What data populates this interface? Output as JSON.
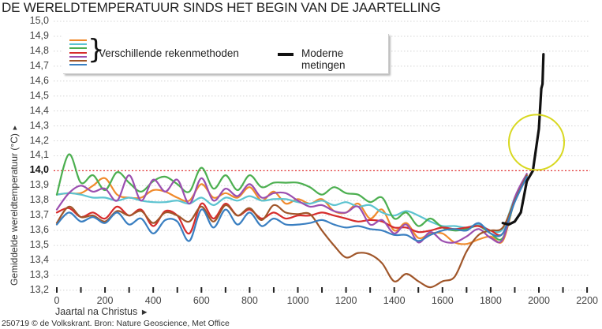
{
  "title": "DE WERELDTEMPERATUUR SINDS HET BEGIN VAN DE JAARTELLING",
  "footer": "250719 © de Volkskrant. Bron: Nature Geoscience, Met Office",
  "legend": {
    "methods_label": "Verschillende rekenmethoden",
    "modern_label": "Moderne metingen",
    "method_colors": [
      "#f08a2c",
      "#5cc3d0",
      "#4caf50",
      "#d62c2c",
      "#9b4fb0",
      "#a0562a",
      "#3a7fc1"
    ]
  },
  "axes": {
    "y_title": "Gemiddelde wereldtemperatuur (°C)",
    "y_arrow": "▲",
    "x_title": "Jaartal na Christus",
    "x_arrow": "►",
    "y_ticks": [
      "15,0",
      "14,9",
      "14,8",
      "14,7",
      "14,6",
      "14,5",
      "14,4",
      "14,3",
      "14,2",
      "14,1",
      "14,0",
      "13,9",
      "13,8",
      "13,7",
      "13,6",
      "13,5",
      "13,4",
      "13,3",
      "13,2"
    ],
    "x_ticks": [
      "0",
      "200",
      "400",
      "600",
      "800",
      "1000",
      "1200",
      "1400",
      "1600",
      "1800",
      "2000",
      "2200"
    ]
  },
  "chart_data": {
    "type": "line",
    "title": "De wereldtemperatuur sinds het begin van de jaartelling",
    "xlabel": "Jaartal na Christus",
    "ylabel": "Gemiddelde wereldtemperatuur (°C)",
    "xlim": [
      0,
      2200
    ],
    "ylim": [
      13.2,
      15.0
    ],
    "grid": "horizontal dotted",
    "reference_line": {
      "y": 14.0,
      "color": "#e03030",
      "style": "dotted"
    },
    "annotation": {
      "type": "circle",
      "color": "#d8d820",
      "center_year": 2000,
      "center_temp": 14.19
    },
    "legend_position": "top-left",
    "x": [
      0,
      50,
      100,
      150,
      200,
      250,
      300,
      350,
      400,
      450,
      500,
      550,
      600,
      650,
      700,
      750,
      800,
      850,
      900,
      950,
      1000,
      1050,
      1100,
      1150,
      1200,
      1250,
      1300,
      1350,
      1400,
      1450,
      1500,
      1550,
      1600,
      1650,
      1700,
      1750,
      1800,
      1850,
      1900,
      1950,
      2000
    ],
    "series": [
      {
        "name": "orange",
        "color": "#f08a2c",
        "values": [
          13.84,
          13.85,
          13.85,
          13.9,
          13.95,
          13.84,
          13.82,
          13.82,
          13.87,
          13.86,
          13.82,
          13.8,
          13.91,
          13.82,
          13.85,
          13.82,
          13.89,
          13.8,
          13.86,
          13.78,
          13.81,
          13.78,
          13.81,
          13.73,
          13.72,
          13.78,
          13.68,
          13.74,
          13.6,
          13.65,
          13.55,
          13.58,
          13.58,
          13.52,
          13.51,
          13.54,
          13.56,
          13.53,
          13.8,
          13.95,
          null
        ]
      },
      {
        "name": "teal",
        "color": "#5cc3d0",
        "values": [
          13.84,
          13.85,
          13.84,
          13.82,
          13.82,
          13.8,
          13.82,
          13.8,
          13.79,
          13.79,
          13.8,
          13.78,
          13.82,
          13.77,
          13.82,
          13.8,
          13.83,
          13.8,
          13.81,
          13.81,
          13.79,
          13.78,
          13.8,
          13.77,
          13.79,
          13.76,
          13.77,
          13.72,
          13.7,
          13.73,
          13.7,
          13.66,
          13.63,
          13.63,
          13.62,
          13.64,
          13.6,
          13.61,
          13.82,
          13.97,
          null
        ]
      },
      {
        "name": "green",
        "color": "#4caf50",
        "values": [
          13.84,
          14.11,
          13.92,
          13.97,
          13.87,
          13.99,
          13.92,
          13.86,
          13.93,
          13.96,
          13.91,
          13.86,
          14.02,
          13.88,
          13.97,
          13.87,
          13.97,
          13.89,
          13.92,
          13.92,
          13.92,
          13.89,
          13.84,
          13.89,
          13.85,
          13.84,
          13.79,
          13.82,
          13.68,
          13.72,
          13.63,
          13.68,
          13.62,
          13.6,
          13.61,
          13.63,
          13.58,
          13.55,
          13.8,
          13.97,
          null
        ]
      },
      {
        "name": "red",
        "color": "#d62c2c",
        "values": [
          13.72,
          13.75,
          13.69,
          13.72,
          13.68,
          13.76,
          13.7,
          13.74,
          13.63,
          13.73,
          13.7,
          13.58,
          13.78,
          13.68,
          13.78,
          13.7,
          13.74,
          13.68,
          13.72,
          13.68,
          13.7,
          13.7,
          13.72,
          13.7,
          13.68,
          13.66,
          13.67,
          13.66,
          13.62,
          13.62,
          13.59,
          13.6,
          13.62,
          13.61,
          13.62,
          13.63,
          13.6,
          13.58,
          13.8,
          13.96,
          null
        ]
      },
      {
        "name": "purple",
        "color": "#9b4fb0",
        "values": [
          13.74,
          13.85,
          13.9,
          13.86,
          13.88,
          13.8,
          13.97,
          13.8,
          13.94,
          13.86,
          13.94,
          13.78,
          13.95,
          13.8,
          13.88,
          13.83,
          13.91,
          13.82,
          13.85,
          13.85,
          13.8,
          13.76,
          13.77,
          13.73,
          13.72,
          13.76,
          13.64,
          13.67,
          13.58,
          13.64,
          13.52,
          13.59,
          13.53,
          13.52,
          13.56,
          13.61,
          13.55,
          13.54,
          13.82,
          13.98,
          null
        ]
      },
      {
        "name": "brown",
        "color": "#a0562a",
        "values": [
          13.65,
          13.76,
          13.69,
          13.7,
          13.66,
          13.73,
          13.7,
          13.73,
          13.65,
          13.72,
          13.7,
          13.66,
          13.76,
          13.66,
          13.77,
          13.7,
          13.75,
          13.67,
          13.77,
          13.72,
          13.71,
          13.71,
          13.6,
          13.5,
          13.42,
          13.45,
          13.44,
          13.38,
          13.26,
          13.31,
          13.26,
          13.22,
          13.26,
          13.29,
          13.46,
          13.57,
          13.6,
          13.62,
          13.8,
          13.97,
          null
        ]
      },
      {
        "name": "blue",
        "color": "#3a7fc1",
        "values": [
          13.64,
          13.72,
          13.66,
          13.69,
          13.65,
          13.72,
          13.64,
          13.68,
          13.58,
          13.67,
          13.66,
          13.53,
          13.74,
          13.62,
          13.74,
          13.64,
          13.72,
          13.63,
          13.68,
          13.64,
          13.64,
          13.65,
          13.67,
          13.64,
          13.62,
          13.63,
          13.61,
          13.6,
          13.57,
          13.57,
          13.53,
          13.57,
          13.6,
          13.61,
          13.6,
          13.65,
          13.58,
          13.58,
          13.79,
          13.96,
          null
        ]
      },
      {
        "name": "Moderne metingen",
        "color": "#111111",
        "x": [
          1850,
          1875,
          1900,
          1925,
          1950,
          1975,
          2000,
          2010,
          2015,
          2019
        ],
        "values": [
          13.65,
          13.64,
          13.66,
          13.72,
          13.93,
          14.0,
          14.28,
          14.55,
          14.58,
          14.78
        ]
      }
    ]
  }
}
